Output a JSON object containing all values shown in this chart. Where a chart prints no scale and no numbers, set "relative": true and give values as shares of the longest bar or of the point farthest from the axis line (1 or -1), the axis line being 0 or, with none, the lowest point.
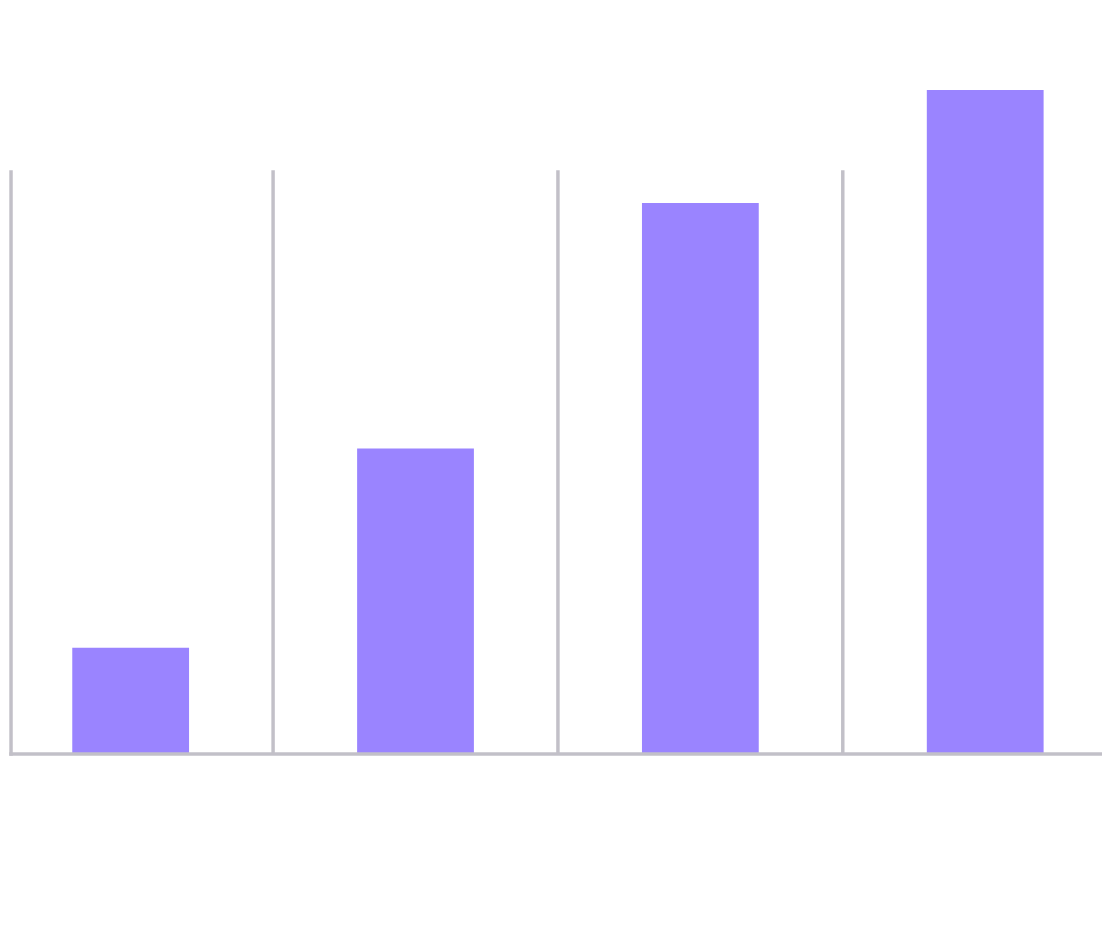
{
  "chart_data": {
    "type": "bar",
    "relative": true,
    "categories": [
      null,
      null,
      null,
      null
    ],
    "values": [
      0.16,
      0.46,
      0.83,
      1
    ],
    "color": "#9a84ff",
    "grid": "x"
  }
}
